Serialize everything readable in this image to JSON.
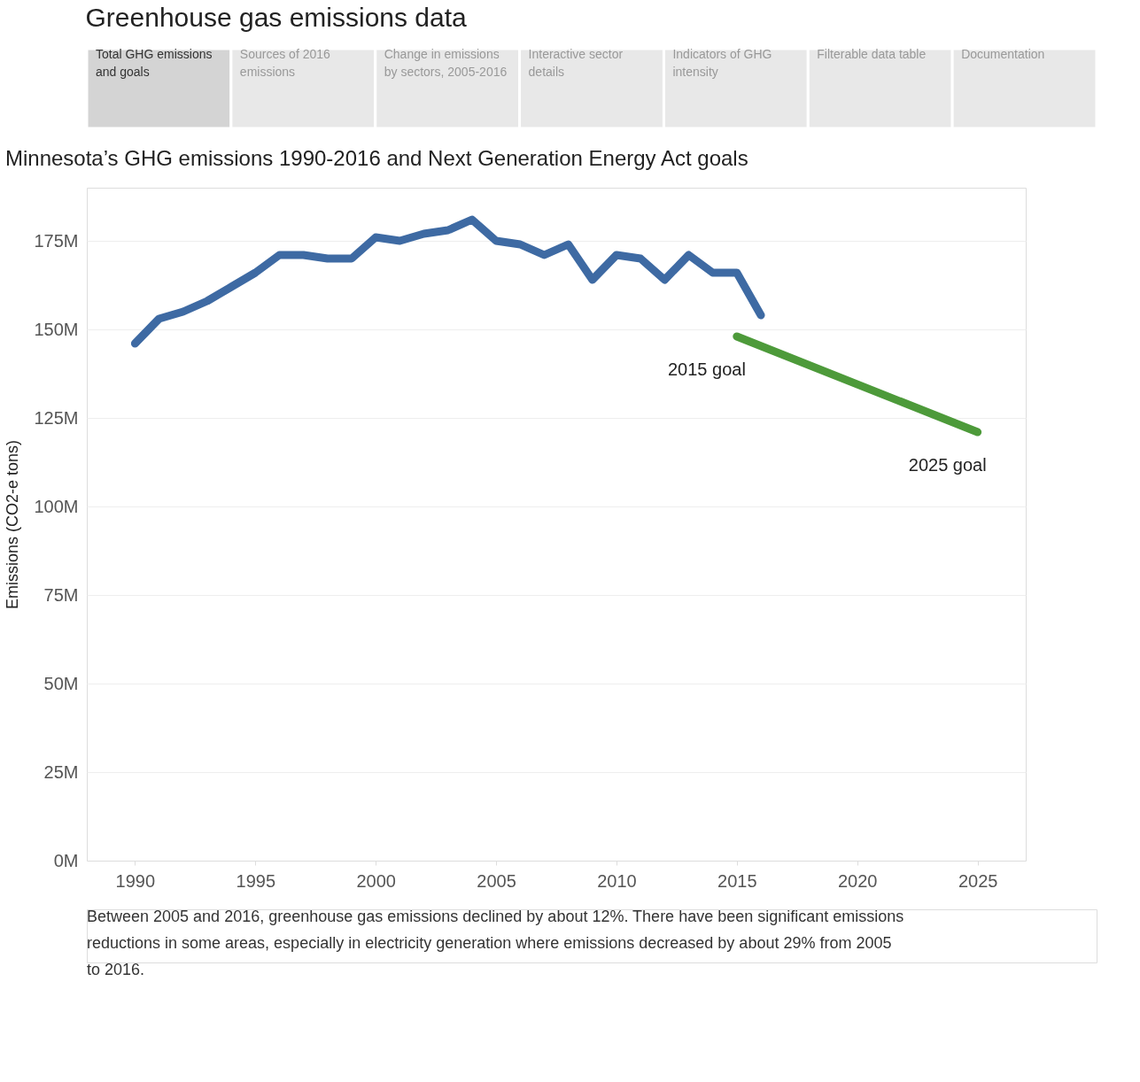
{
  "chart_data": {
    "type": "line",
    "title": "Greenhouse gas emissions data",
    "subtitle": "Minnesota’s GHG emissions 1990-2016 and Next Generation Energy Act goals",
    "ylabel": "Emissions (CO2-e tons)",
    "series": [
      {
        "color": "#3e6aa3",
        "x": [
          1990,
          1991,
          1992,
          1993,
          1994,
          1995,
          1996,
          1997,
          1998,
          1999,
          2000,
          2001,
          2002,
          2003,
          2004,
          2005,
          2006,
          2007,
          2008,
          2009,
          2010,
          2011,
          2012,
          2013,
          2014,
          2015,
          2016
        ],
        "values": [
          146,
          153,
          155,
          158,
          162,
          166,
          171,
          171,
          170,
          170,
          176,
          175,
          177,
          178,
          181,
          175,
          174,
          171,
          174,
          164,
          171,
          170,
          164,
          171,
          166,
          166,
          154
        ]
      },
      {
        "color": "#4d9a3a",
        "x": [
          2015,
          2025
        ],
        "values": [
          148,
          121
        ]
      }
    ],
    "xlim": [
      1988,
      2027
    ],
    "xticks": [
      1990,
      1995,
      2000,
      2005,
      2010,
      2015,
      2020,
      2025
    ],
    "ylim": [
      0,
      190
    ],
    "yticks": [
      {
        "value": 0,
        "label": "0M"
      },
      {
        "value": 25,
        "label": "25M"
      },
      {
        "value": 50,
        "label": "50M"
      },
      {
        "value": 75,
        "label": "75M"
      },
      {
        "value": 100,
        "label": "100M"
      },
      {
        "value": 125,
        "label": "125M"
      },
      {
        "value": 150,
        "label": "150M"
      },
      {
        "value": 175,
        "label": "175M"
      }
    ],
    "grid": "y",
    "marker": "none",
    "line_style": "solid",
    "annotations": [
      "Total GHG emissions and goals",
      "Sources of 2016 emissions",
      "Change in emissions by sectors, 2005-2016",
      "Interactive sector details",
      "Indicators of GHG intensity",
      "Filterable data table",
      "Documentation",
      {
        "text": "2015 goal",
        "x": 2015,
        "y": 148
      },
      {
        "text": "2025 goal",
        "x": 2025,
        "y": 121
      },
      "Between 2005 and 2016, greenhouse gas emissions declined by about 12%. There have been significant emissions reductions in some areas, especially in electricity generation where emissions decreased by about 29% from 2005 to 2016."
    ]
  }
}
